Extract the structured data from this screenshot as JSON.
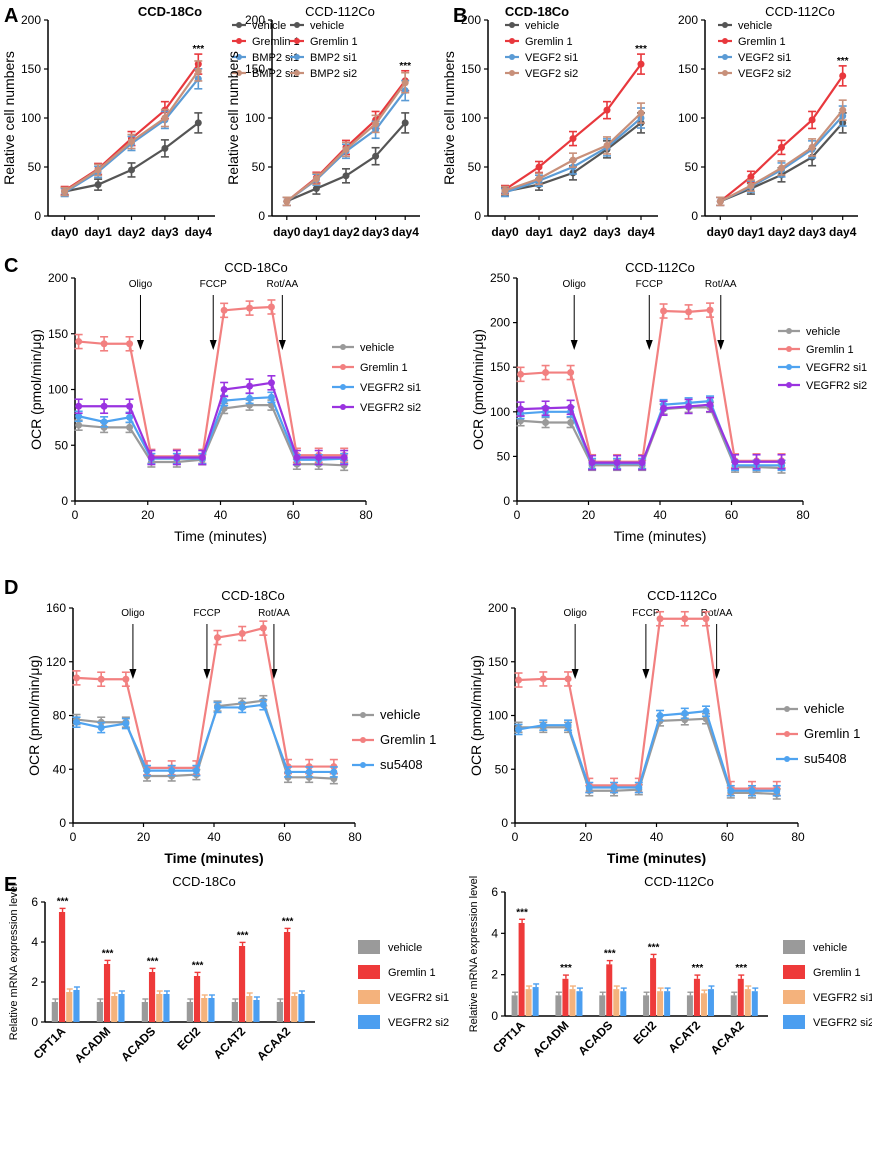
{
  "chart_data": [
    {
      "id": "A1",
      "panel": "A",
      "type": "line",
      "title": "CCD-18Co",
      "ylabel": "Relative cell numbers",
      "xlabel": "",
      "categories": [
        "day0",
        "day1",
        "day2",
        "day3",
        "day4"
      ],
      "ylim": [
        0,
        200
      ],
      "yticks": [
        0,
        50,
        100,
        150,
        200
      ],
      "series": [
        {
          "name": "vehicle",
          "color": "#555555",
          "values": [
            25,
            32,
            47,
            69,
            95
          ]
        },
        {
          "name": "Gremlin 1",
          "color": "#e8383d",
          "values": [
            26,
            48,
            79,
            108,
            155
          ]
        },
        {
          "name": "BMP2 si1",
          "color": "#5b9bd5",
          "values": [
            24,
            45,
            74,
            98,
            140
          ]
        },
        {
          "name": "BMP2 si2",
          "color": "#c8907a",
          "values": [
            25,
            47,
            76,
            100,
            148
          ]
        }
      ],
      "annotations": [
        "***"
      ]
    },
    {
      "id": "A2",
      "panel": "",
      "type": "line",
      "title": "CCD-112Co",
      "ylabel": "Relative cell numbers",
      "xlabel": "",
      "categories": [
        "day0",
        "day1",
        "day2",
        "day3",
        "day4"
      ],
      "ylim": [
        0,
        200
      ],
      "yticks": [
        0,
        50,
        100,
        150,
        200
      ],
      "series": [
        {
          "name": "vehicle",
          "color": "#555555",
          "values": [
            15,
            28,
            41,
            61,
            95
          ]
        },
        {
          "name": "Gremlin 1",
          "color": "#e8383d",
          "values": [
            15,
            39,
            70,
            98,
            138
          ]
        },
        {
          "name": "BMP2 si1",
          "color": "#5b9bd5",
          "values": [
            15,
            37,
            66,
            88,
            128
          ]
        },
        {
          "name": "BMP2 si2",
          "color": "#c8907a",
          "values": [
            15,
            38,
            68,
            94,
            136
          ]
        }
      ],
      "annotations": [
        "***"
      ]
    },
    {
      "id": "B1",
      "panel": "B",
      "type": "line",
      "title": "CCD-18Co",
      "ylabel": "Relative cell numbers",
      "xlabel": "",
      "categories": [
        "day0",
        "day1",
        "day2",
        "day3",
        "day4"
      ],
      "ylim": [
        0,
        200
      ],
      "yticks": [
        0,
        50,
        100,
        150,
        200
      ],
      "series": [
        {
          "name": "vehicle",
          "color": "#555555",
          "values": [
            25,
            32,
            44,
            68,
            95
          ]
        },
        {
          "name": "Gremlin 1",
          "color": "#e8383d",
          "values": [
            27,
            50,
            79,
            108,
            155
          ]
        },
        {
          "name": "VEGF2 si1",
          "color": "#5b9bd5",
          "values": [
            24,
            36,
            50,
            70,
            100
          ]
        },
        {
          "name": "VEGF2 si2",
          "color": "#c8907a",
          "values": [
            26,
            38,
            57,
            72,
            105
          ]
        }
      ],
      "annotations": [
        "***"
      ]
    },
    {
      "id": "B2",
      "panel": "",
      "type": "line",
      "title": "CCD-112Co",
      "ylabel": "",
      "xlabel": "",
      "categories": [
        "day0",
        "day1",
        "day2",
        "day3",
        "day4"
      ],
      "ylim": [
        0,
        200
      ],
      "yticks": [
        0,
        50,
        100,
        150,
        200
      ],
      "series": [
        {
          "name": "vehicle",
          "color": "#555555",
          "values": [
            15,
            28,
            42,
            60,
            95
          ]
        },
        {
          "name": "Gremlin 1",
          "color": "#e8383d",
          "values": [
            15,
            40,
            70,
            98,
            143
          ]
        },
        {
          "name": "VEGF2 si1",
          "color": "#5b9bd5",
          "values": [
            15,
            30,
            47,
            68,
            102
          ]
        },
        {
          "name": "VEGF2 si2",
          "color": "#c8907a",
          "values": [
            15,
            31,
            49,
            70,
            108
          ]
        }
      ],
      "annotations": [
        "***"
      ]
    },
    {
      "id": "C1",
      "panel": "C",
      "type": "line",
      "title": "CCD-18Co",
      "ylabel": "OCR (pmol/min/μg)",
      "xlabel": "Time (minutes)",
      "x": [
        1,
        8,
        15,
        21,
        28,
        35,
        41,
        48,
        54,
        61,
        67,
        74
      ],
      "xlim": [
        0,
        80
      ],
      "xticks": [
        0,
        20,
        40,
        60,
        80
      ],
      "ylim": [
        0,
        200
      ],
      "yticks": [
        0,
        50,
        100,
        150,
        200
      ],
      "series": [
        {
          "name": "vehicle",
          "color": "#9a9a9a",
          "values": [
            68,
            66,
            66,
            35,
            35,
            37,
            83,
            86,
            86,
            33,
            33,
            32
          ]
        },
        {
          "name": "Gremlin 1",
          "color": "#f28080",
          "values": [
            143,
            141,
            141,
            40,
            40,
            40,
            171,
            173,
            174,
            41,
            41,
            41
          ]
        },
        {
          "name": "VEGFR2 si1",
          "color": "#4fa3f0",
          "values": [
            76,
            71,
            75,
            38,
            38,
            38,
            90,
            92,
            93,
            37,
            37,
            38
          ]
        },
        {
          "name": "VEGFR2 si2",
          "color": "#9a33e0",
          "values": [
            85,
            85,
            85,
            39,
            39,
            39,
            100,
            103,
            106,
            39,
            39,
            39
          ]
        }
      ],
      "annotations": [
        {
          "label": "Oligo",
          "x": 18
        },
        {
          "label": "FCCP",
          "x": 38
        },
        {
          "label": "Rot/AA",
          "x": 57
        }
      ]
    },
    {
      "id": "C2",
      "panel": "",
      "type": "line",
      "title": "CCD-112Co",
      "ylabel": "OCR (pmol/min/μg)",
      "xlabel": "Time (minutes)",
      "x": [
        1,
        8,
        15,
        21,
        28,
        35,
        41,
        48,
        54,
        61,
        67,
        74
      ],
      "xlim": [
        0,
        80
      ],
      "xticks": [
        0,
        20,
        40,
        60,
        80
      ],
      "ylim": [
        0,
        250
      ],
      "yticks": [
        0,
        50,
        100,
        150,
        200,
        250
      ],
      "series": [
        {
          "name": "vehicle",
          "color": "#9a9a9a",
          "values": [
            90,
            88,
            88,
            40,
            40,
            40,
            103,
            105,
            105,
            38,
            38,
            37
          ]
        },
        {
          "name": "Gremlin 1",
          "color": "#f28080",
          "values": [
            142,
            144,
            144,
            44,
            44,
            44,
            213,
            212,
            214,
            45,
            45,
            45
          ]
        },
        {
          "name": "VEGFR2 si1",
          "color": "#4fa3f0",
          "values": [
            98,
            100,
            100,
            42,
            42,
            42,
            108,
            110,
            112,
            40,
            40,
            40
          ]
        },
        {
          "name": "VEGFR2 si2",
          "color": "#9a33e0",
          "values": [
            103,
            104,
            105,
            43,
            43,
            43,
            104,
            106,
            108,
            44,
            44,
            44
          ]
        }
      ],
      "annotations": [
        {
          "label": "Oligo",
          "x": 16
        },
        {
          "label": "FCCP",
          "x": 37
        },
        {
          "label": "Rot/AA",
          "x": 57
        }
      ]
    },
    {
      "id": "D1",
      "panel": "D",
      "type": "line",
      "title": "CCD-18Co",
      "ylabel": "OCR (pmol/min/μg)",
      "xlabel": "Time (minutes)",
      "x": [
        1,
        8,
        15,
        21,
        28,
        35,
        41,
        48,
        54,
        61,
        67,
        74
      ],
      "xlim": [
        0,
        80
      ],
      "xticks": [
        0,
        20,
        40,
        60,
        80
      ],
      "ylim": [
        0,
        160
      ],
      "yticks": [
        0,
        40,
        80,
        120,
        160
      ],
      "series": [
        {
          "name": "vehicle",
          "color": "#9a9a9a",
          "values": [
            77,
            75,
            75,
            35,
            35,
            36,
            87,
            89,
            91,
            34,
            34,
            33
          ]
        },
        {
          "name": "Gremlin 1",
          "color": "#f28080",
          "values": [
            108,
            107,
            107,
            41,
            41,
            41,
            138,
            141,
            145,
            42,
            42,
            42
          ]
        },
        {
          "name": "su5408",
          "color": "#4fa3f0",
          "values": [
            75,
            71,
            74,
            39,
            39,
            39,
            86,
            86,
            88,
            38,
            38,
            38
          ]
        }
      ],
      "annotations": [
        {
          "label": "Oligo",
          "x": 17
        },
        {
          "label": "FCCP",
          "x": 38
        },
        {
          "label": "Rot/AA",
          "x": 57
        }
      ]
    },
    {
      "id": "D2",
      "panel": "",
      "type": "line",
      "title": "CCD-112Co",
      "ylabel": "OCR (pmol/min/μg)",
      "xlabel": "Time (minutes)",
      "x": [
        1,
        8,
        15,
        21,
        28,
        35,
        41,
        48,
        54,
        61,
        67,
        74
      ],
      "xlim": [
        0,
        80
      ],
      "xticks": [
        0,
        20,
        40,
        60,
        80
      ],
      "ylim": [
        0,
        200
      ],
      "yticks": [
        0,
        50,
        100,
        150,
        200
      ],
      "series": [
        {
          "name": "vehicle",
          "color": "#9a9a9a",
          "values": [
            89,
            89,
            89,
            30,
            30,
            31,
            95,
            96,
            97,
            28,
            28,
            27
          ]
        },
        {
          "name": "Gremlin 1",
          "color": "#f28080",
          "values": [
            133,
            134,
            134,
            35,
            35,
            35,
            190,
            190,
            190,
            32,
            32,
            32
          ]
        },
        {
          "name": "su5408",
          "color": "#4fa3f0",
          "values": [
            87,
            91,
            91,
            33,
            33,
            33,
            100,
            102,
            104,
            30,
            30,
            30
          ]
        }
      ],
      "annotations": [
        {
          "label": "Oligo",
          "x": 17
        },
        {
          "label": "FCCP",
          "x": 37
        },
        {
          "label": "Rot/AA",
          "x": 57
        }
      ]
    },
    {
      "id": "E1",
      "panel": "E",
      "type": "bar",
      "title": "CCD-18Co",
      "ylabel": "Relative mRNA expression level",
      "xlabel": "",
      "categories": [
        "CPT1A",
        "ACADM",
        "ACADS",
        "ECI2",
        "ACAT2",
        "ACAA2"
      ],
      "ylim": [
        0,
        6
      ],
      "yticks": [
        0,
        2,
        4,
        6
      ],
      "series": [
        {
          "name": "vehicle",
          "color": "#9a9a9a",
          "values": [
            1.0,
            1.0,
            1.0,
            1.0,
            1.0,
            1.0
          ]
        },
        {
          "name": "Gremlin 1",
          "color": "#ee3a3a",
          "values": [
            5.5,
            2.9,
            2.5,
            2.3,
            3.8,
            4.5
          ]
        },
        {
          "name": "VEGFR2 si1",
          "color": "#f4b27c",
          "values": [
            1.5,
            1.3,
            1.4,
            1.2,
            1.3,
            1.3
          ]
        },
        {
          "name": "VEGFR2 si2",
          "color": "#4b9ef0",
          "values": [
            1.6,
            1.4,
            1.4,
            1.2,
            1.1,
            1.4
          ]
        }
      ],
      "annotations": [
        "***",
        "***",
        "***",
        "***",
        "***",
        "***"
      ]
    },
    {
      "id": "E2",
      "panel": "",
      "type": "bar",
      "title": "CCD-112Co",
      "ylabel": "Relative mRNA expression level",
      "xlabel": "",
      "categories": [
        "CPT1A",
        "ACADM",
        "ACADS",
        "ECI2",
        "ACAT2",
        "ACAA2"
      ],
      "ylim": [
        0,
        6
      ],
      "yticks": [
        0,
        2,
        4,
        6
      ],
      "series": [
        {
          "name": "vehicle",
          "color": "#9a9a9a",
          "values": [
            1.0,
            1.0,
            1.0,
            1.0,
            1.0,
            1.0
          ]
        },
        {
          "name": "Gremlin 1",
          "color": "#ee3a3a",
          "values": [
            4.5,
            1.8,
            2.5,
            2.8,
            1.8,
            1.8
          ]
        },
        {
          "name": "VEGFR2 si1",
          "color": "#f4b27c",
          "values": [
            1.3,
            1.3,
            1.3,
            1.2,
            1.1,
            1.3
          ]
        },
        {
          "name": "VEGFR2 si2",
          "color": "#4b9ef0",
          "values": [
            1.4,
            1.2,
            1.2,
            1.2,
            1.3,
            1.2
          ]
        }
      ],
      "annotations": [
        "***",
        "***",
        "***",
        "***",
        "***",
        "***"
      ]
    }
  ]
}
